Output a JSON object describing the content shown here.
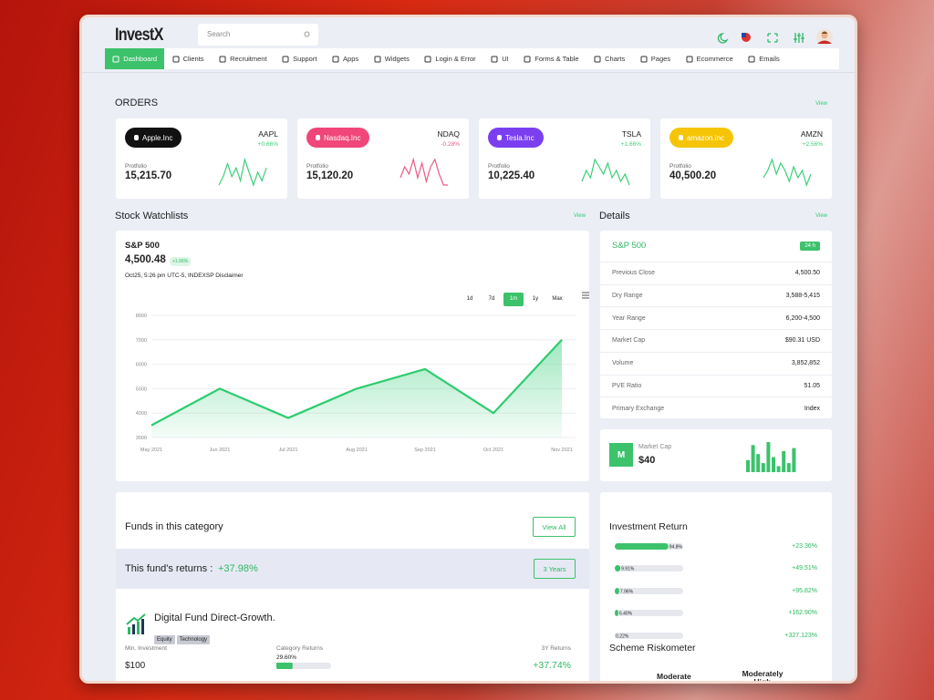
{
  "header": {
    "logo": "InvestX",
    "search_placeholder": "Search"
  },
  "nav": [
    "Dashboard",
    "Clients",
    "Recruitment",
    "Support",
    "Apps",
    "Widgets",
    "Login & Error",
    "UI",
    "Forms & Table",
    "Charts",
    "Pages",
    "Ecommerce",
    "Emails"
  ],
  "orders": {
    "title": "ORDERS",
    "link": "View",
    "cards": [
      {
        "name": "Apple.Inc",
        "ticker": "AAPL",
        "change": "+0.66%",
        "label": "Protfolio",
        "value": "15,215.70",
        "color": "#111111",
        "spark_color": "#3ccf7a",
        "spark": [
          2,
          4,
          7,
          4,
          6,
          3,
          8,
          5,
          2,
          5,
          3,
          6
        ]
      },
      {
        "name": "Nasdaq.Inc",
        "ticker": "NDAQ",
        "change": "-0.28%",
        "label": "Protfolio",
        "value": "15,120.20",
        "color": "#f0467a",
        "spark_color": "#ec5a83",
        "spark": [
          3,
          6,
          4,
          8,
          3,
          7,
          2,
          6,
          8,
          4,
          1,
          1
        ]
      },
      {
        "name": "Tesla.Inc",
        "ticker": "TSLA",
        "change": "+1.66%",
        "label": "Protfolio",
        "value": "10,225.40",
        "color": "#7b3ff0",
        "spark_color": "#3ccf7a",
        "spark": [
          2,
          5,
          3,
          8,
          6,
          4,
          7,
          3,
          5,
          2,
          4,
          1
        ]
      },
      {
        "name": "amazon.inc",
        "ticker": "AMZN",
        "change": "+2.56%",
        "label": "Protfolio",
        "value": "40,500.20",
        "color": "#f5c505",
        "spark_color": "#3ccf7a",
        "spark": [
          3,
          5,
          8,
          4,
          7,
          5,
          2,
          6,
          3,
          5,
          1,
          4
        ]
      }
    ]
  },
  "watchlist": {
    "title": "Stock Watchlists",
    "link": "View",
    "index": "S&P 500",
    "price": "4,500.48",
    "change": "+1.66%",
    "meta": "Oct25, 5:26 pm UTC-5, INDEXSP Disclaimer",
    "periods": [
      "1d",
      "7d",
      "1m",
      "1y",
      "Max"
    ],
    "chart": {
      "type": "line",
      "categories": [
        "May 2021",
        "Jun 2021",
        "Jul 2021",
        "Aug 2021",
        "Sep 2021",
        "Oct 2021",
        "Nov 2021"
      ],
      "values": [
        3500,
        5000,
        3800,
        5000,
        5800,
        4000,
        7000
      ],
      "ylim": [
        3000,
        8000
      ],
      "yticks": [
        3000,
        4000,
        5000,
        6000,
        7000,
        8000
      ],
      "color": "#2ecc71",
      "grid": true
    }
  },
  "details": {
    "title": "Details",
    "link": "View",
    "index": "S&P 500",
    "badge": "24 h",
    "rows": [
      [
        "Previous Close",
        "4,500.50"
      ],
      [
        "Dry Range",
        "3,588-5,415"
      ],
      [
        "Year Range",
        "6,200-4,500"
      ],
      [
        "Market Cap",
        "$90.31 USD"
      ],
      [
        "Volume",
        "3,852,852"
      ],
      [
        "PVE Ratio",
        "51.05"
      ],
      [
        "Primary Exchange",
        "Index"
      ]
    ]
  },
  "market_cap": {
    "icon": "M",
    "label": "Market Cap",
    "value": "$40",
    "bars": [
      4,
      9,
      6,
      3,
      10,
      5,
      2,
      7,
      3,
      8
    ]
  },
  "funds": {
    "title": "Funds in this category",
    "button": "View All",
    "returns_label": "This fund's returns :",
    "returns_value": "+37.98%",
    "period": "3 Years",
    "fund": {
      "name": "Digital Fund Direct-Growth.",
      "tags": [
        "Equity",
        "Technology"
      ],
      "min_label": "Min. Investment",
      "min_value": "$100",
      "cat_label": "Category Returns",
      "cat_value": {
        "value": 29.6,
        "label": "29.60%"
      },
      "y3_label": "3Y Returns",
      "y3_value": "+37.74%"
    }
  },
  "investment": {
    "title": "Investment Return",
    "rows": [
      {
        "bar": {
          "value": 94.8,
          "label": "94.8%"
        },
        "return": "+23.36%"
      },
      {
        "bar": {
          "value": 9.91,
          "label": "9.91%"
        },
        "return": "+49.51%"
      },
      {
        "bar": {
          "value": 7.96,
          "label": "7.96%"
        },
        "return": "+95.82%"
      },
      {
        "bar": {
          "value": 6.4,
          "label": "6.40%"
        },
        "return": "+162.90%"
      },
      {
        "bar": {
          "value": 0.22,
          "label": "0.22%"
        },
        "return": "+327.123%"
      }
    ],
    "riskometer": {
      "title": "Scheme Riskometer",
      "levels": [
        "Moderate",
        "Moderately High"
      ]
    }
  }
}
